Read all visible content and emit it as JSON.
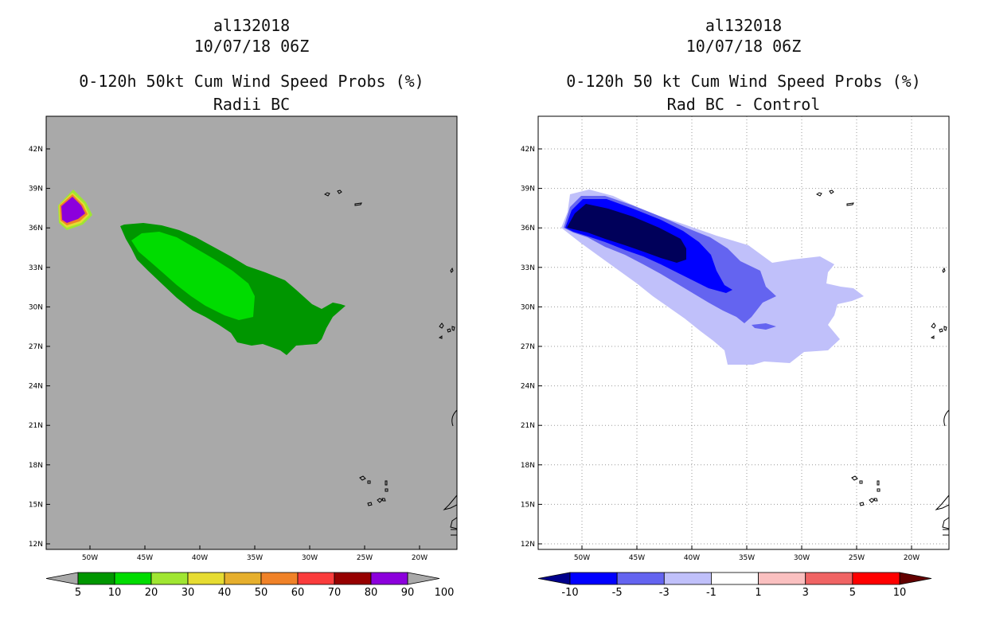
{
  "chart_data": [
    {
      "type": "heatmap",
      "title_lines": [
        "al132018",
        "10/07/18 06Z",
        "0-120h 50kt Cum Wind Speed Probs (%)",
        "Radii BC"
      ],
      "lat_ticks": [
        "42N",
        "39N",
        "36N",
        "33N",
        "30N",
        "27N",
        "24N",
        "21N",
        "18N",
        "15N",
        "12N"
      ],
      "lon_ticks": [
        "50W",
        "45W",
        "40W",
        "35W",
        "30W",
        "25W",
        "20W"
      ],
      "grid": false,
      "background_color": "#a9a9a9",
      "colorbar": {
        "labels": [
          "5",
          "10",
          "20",
          "30",
          "40",
          "50",
          "60",
          "70",
          "80",
          "90",
          "100"
        ],
        "colors": [
          "#009600",
          "#00dc00",
          "#a0e632",
          "#e6dc32",
          "#e6af2d",
          "#f08228",
          "#fa3c3c",
          "#960000",
          "#8c00dc"
        ],
        "end_colors": [
          "#a9a9a9",
          "#a9a9a9"
        ]
      },
      "regions": [
        {
          "name": "prob-10-20-region",
          "color": "#009600"
        },
        {
          "name": "prob-20-30-region",
          "color": "#00dc00"
        },
        {
          "name": "high-prob-outer-region",
          "color": "#a0e632"
        },
        {
          "name": "high-prob-yellow-region",
          "color": "#e6dc32"
        },
        {
          "name": "high-prob-orange-region",
          "color": "#f08228"
        },
        {
          "name": "prob-100-region",
          "color": "#8c00dc"
        }
      ]
    },
    {
      "type": "heatmap",
      "title_lines": [
        "al132018",
        "10/07/18 06Z",
        "0-120h 50 kt Cum Wind Speed Probs (%)",
        "Rad BC - Control"
      ],
      "lat_ticks": [
        "42N",
        "39N",
        "36N",
        "33N",
        "30N",
        "27N",
        "24N",
        "21N",
        "18N",
        "15N",
        "12N"
      ],
      "lon_ticks": [
        "50W",
        "45W",
        "40W",
        "35W",
        "30W",
        "25W",
        "20W"
      ],
      "grid": true,
      "background_color": "#ffffff",
      "colorbar": {
        "labels": [
          "-10",
          "-5",
          "-3",
          "-1",
          "1",
          "3",
          "5",
          "10"
        ],
        "colors": [
          "#0000ff",
          "#6464f0",
          "#c0c0fa",
          "#ffffff",
          "#fac0c0",
          "#f06464",
          "#ff0000"
        ],
        "end_colors": [
          "#00008c",
          "#640000"
        ]
      },
      "regions": [
        {
          "name": "diff-minus1-to-minus3-region",
          "color": "#c0c0fa"
        },
        {
          "name": "diff-minus3-to-minus5-region",
          "color": "#6464f0"
        },
        {
          "name": "diff-minus5-to-minus10-region",
          "color": "#0000ff"
        },
        {
          "name": "diff-below-minus10-region",
          "color": "#00005a"
        }
      ]
    }
  ]
}
